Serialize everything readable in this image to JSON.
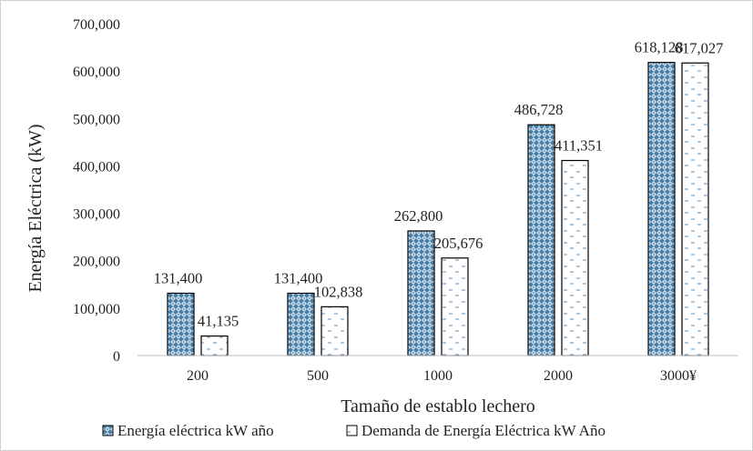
{
  "chart_data": {
    "type": "bar",
    "categories": [
      "200",
      "500",
      "1000",
      "2000",
      "3000¥"
    ],
    "series": [
      {
        "name": "Energía eléctrica kW año",
        "values": [
          131400,
          131400,
          262800,
          486728,
          618128
        ],
        "data_labels": [
          "131,400",
          "131,400",
          "262,800",
          "486,728",
          "618,128"
        ],
        "fill": "pattern-diamond",
        "color": "#4a7fa7"
      },
      {
        "name": "Demanda de Energía Eléctrica kW Año",
        "values": [
          41135,
          102838,
          205676,
          411351,
          617027
        ],
        "data_labels": [
          "41,135",
          "102,838",
          "205,676",
          "411,351",
          "617,027"
        ],
        "fill": "pattern-dash",
        "color": "#5b8fbf"
      }
    ],
    "title": "",
    "xlabel": "Tamaño de establo lechero",
    "ylabel": "Energía Eléctrica (kW)",
    "ylim": [
      0,
      700000
    ],
    "yticks": [
      0,
      100000,
      200000,
      300000,
      400000,
      500000,
      600000,
      700000
    ],
    "ytick_labels": [
      "0",
      "100,000",
      "200,000",
      "300,000",
      "400,000",
      "500,000",
      "600,000",
      "700,000"
    ],
    "grid": false,
    "legend_position": "bottom"
  }
}
